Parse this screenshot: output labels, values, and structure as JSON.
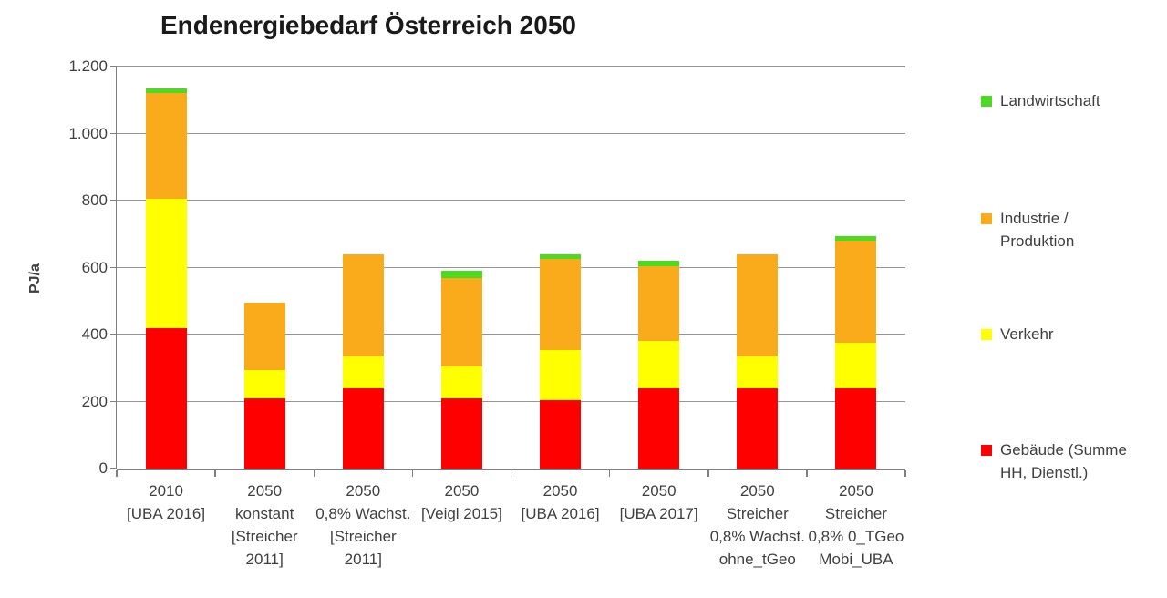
{
  "chart_data": {
    "type": "bar",
    "stacked": true,
    "title": "Endenergiebedarf Österreich 2050",
    "xlabel": "",
    "ylabel": "PJ/a",
    "ylim": [
      0,
      1200
    ],
    "grid": true,
    "legend_position": "right",
    "ytick_values": [
      0,
      200,
      400,
      600,
      800,
      1000,
      1200
    ],
    "ytick_labels": [
      "0",
      "200",
      "400",
      "600",
      "800",
      "1.000",
      "1.200"
    ],
    "categories": [
      "2010 [UBA 2016]",
      "2050 konstant [Streicher 2011]",
      "2050 0,8% Wachst. [Streicher 2011]",
      "2050 [Veigl 2015]",
      "2050 [UBA 2016]",
      "2050 [UBA 2017]",
      "2050 Streicher 0,8% Wachst. ohne_tGeo",
      "2050 Streicher 0,8% 0_TGeo Mobi_UBA"
    ],
    "category_label_lines": [
      [
        "2010",
        "[UBA 2016]"
      ],
      [
        "2050",
        "konstant",
        "[Streicher",
        "2011]"
      ],
      [
        "2050",
        "0,8% Wachst.",
        "[Streicher",
        "2011]"
      ],
      [
        "2050",
        "[Veigl 2015]"
      ],
      [
        "2050",
        "[UBA 2016]"
      ],
      [
        "2050",
        "[UBA 2017]"
      ],
      [
        "2050",
        "Streicher",
        "0,8% Wachst.",
        "ohne_tGeo"
      ],
      [
        "2050",
        "Streicher",
        "0,8% 0_TGeo",
        "Mobi_UBA"
      ]
    ],
    "series": [
      {
        "name": "Gebäude (Summe HH, Dienstl.)",
        "color": "#ff0000",
        "values": [
          420,
          210,
          240,
          210,
          205,
          240,
          240,
          240
        ]
      },
      {
        "name": "Verkehr",
        "color": "#ffff00",
        "values": [
          385,
          85,
          95,
          95,
          150,
          140,
          95,
          135
        ]
      },
      {
        "name": "Industrie / Produktion",
        "color": "#faab1c",
        "values": [
          315,
          200,
          305,
          265,
          270,
          225,
          305,
          305
        ]
      },
      {
        "name": "Landwirtschaft",
        "color": "#4bdb20",
        "values": [
          15,
          0,
          0,
          20,
          15,
          15,
          0,
          15
        ]
      }
    ],
    "totals": [
      1135,
      495,
      640,
      590,
      640,
      620,
      640,
      695
    ],
    "legend": [
      {
        "name": "Landwirtschaft",
        "lines": [
          "Landwirtschaft"
        ],
        "color": "#4bdb20"
      },
      {
        "name": "Industrie / Produktion",
        "lines": [
          "Industrie /",
          "Produktion"
        ],
        "color": "#faab1c"
      },
      {
        "name": "Verkehr",
        "lines": [
          "Verkehr"
        ],
        "color": "#ffff00"
      },
      {
        "name": "Gebäude (Summe HH, Dienstl.)",
        "lines": [
          "Gebäude (Summe",
          "HH, Dienstl.)"
        ],
        "color": "#ff0000"
      }
    ],
    "colors": {
      "axis": "#7f7f7f",
      "grid": "#969696",
      "text": "#3f3f3f",
      "title_text": "#1a1a1a",
      "background": "#ffffff"
    }
  }
}
